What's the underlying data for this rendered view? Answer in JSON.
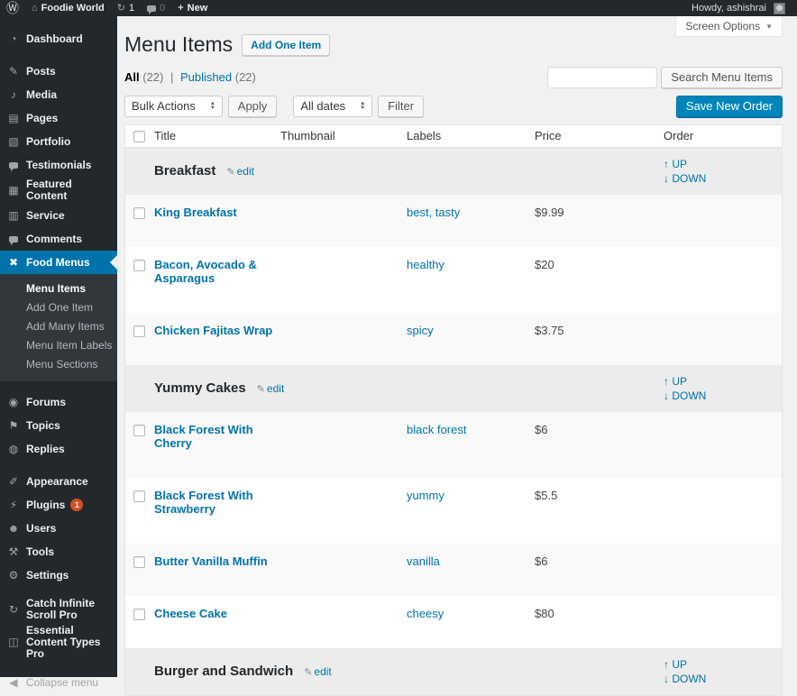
{
  "admin_bar": {
    "wp_logo_glyph": "Ⓦ",
    "home_glyph": "⌂",
    "site_name": "Foodie World",
    "updates_glyph": "↻",
    "update_count": "1",
    "comment_count": "0",
    "plus_glyph": "+",
    "new_label": "New",
    "howdy": "Howdy, ashishrai",
    "avatar_glyph": "☻"
  },
  "sidebar": {
    "items": [
      {
        "label": "Dashboard",
        "icon": "dashboard-icon",
        "glyph": "◔"
      },
      {
        "label": "Posts",
        "icon": "posts-icon",
        "glyph": "✎",
        "gap_before": true
      },
      {
        "label": "Media",
        "icon": "media-icon",
        "glyph": "♪"
      },
      {
        "label": "Pages",
        "icon": "pages-icon",
        "glyph": "▤"
      },
      {
        "label": "Portfolio",
        "icon": "portfolio-icon",
        "glyph": "▧"
      },
      {
        "label": "Testimonials",
        "icon": "testimonials-icon",
        "shape": "bubble"
      },
      {
        "label": "Featured Content",
        "icon": "featured-content-icon",
        "glyph": "▦"
      },
      {
        "label": "Service",
        "icon": "service-icon",
        "glyph": "▥"
      },
      {
        "label": "Comments",
        "icon": "comments-icon",
        "shape": "bubble"
      },
      {
        "label": "Food Menus",
        "icon": "food-menus-icon",
        "glyph": "✖",
        "active": true,
        "submenu": [
          "Menu Items",
          "Add One Item",
          "Add Many Items",
          "Menu Item Labels",
          "Menu Sections"
        ],
        "submenu_active": "Menu Items"
      },
      {
        "label": "Forums",
        "icon": "forums-icon",
        "glyph": "◉",
        "gap_before": true
      },
      {
        "label": "Topics",
        "icon": "topics-icon",
        "glyph": "⚑"
      },
      {
        "label": "Replies",
        "icon": "replies-icon",
        "glyph": "◍"
      },
      {
        "label": "Appearance",
        "icon": "appearance-icon",
        "glyph": "✐",
        "gap_before": true
      },
      {
        "label": "Plugins",
        "icon": "plugins-icon",
        "glyph": "⚡",
        "badge": "1"
      },
      {
        "label": "Users",
        "icon": "users-icon",
        "glyph": "☻"
      },
      {
        "label": "Tools",
        "icon": "tools-icon",
        "glyph": "⚒"
      },
      {
        "label": "Settings",
        "icon": "settings-icon",
        "glyph": "⚙"
      },
      {
        "label": "Catch Infinite Scroll Pro",
        "icon": "catch-infinite-scroll-icon",
        "glyph": "↻",
        "gap_before": true
      },
      {
        "label": "Essential Content Types Pro",
        "icon": "essential-content-types-icon",
        "glyph": "◫"
      },
      {
        "label": "Collapse menu",
        "icon": "collapse-menu-icon",
        "glyph": "◀",
        "collapse": true,
        "gap_before": true
      }
    ]
  },
  "page": {
    "title": "Menu Items",
    "add_button": "Add One Item",
    "screen_options": "Screen Options",
    "screen_options_caret": "▼",
    "filters": {
      "all_label": "All",
      "all_count": "(22)",
      "separator": "|",
      "published_label": "Published",
      "published_count": "(22)"
    },
    "bulk_actions_label": "Bulk Actions",
    "apply_label": "Apply",
    "all_dates_label": "All dates",
    "filter_label": "Filter",
    "search_value": "",
    "search_button": "Search Menu Items",
    "save_order_button": "Save New Order"
  },
  "table": {
    "columns": [
      "Title",
      "Thumbnail",
      "Labels",
      "Price",
      "Order"
    ],
    "edit_label": "edit",
    "edit_glyph": "✎",
    "up_glyph": "↑",
    "up_label": "UP",
    "down_glyph": "↓",
    "down_label": "DOWN",
    "rows": [
      {
        "type": "section",
        "title": "Breakfast"
      },
      {
        "type": "item",
        "title": "King Breakfast",
        "labels": "best, tasty",
        "price": "$9.99"
      },
      {
        "type": "item",
        "title": "Bacon, Avocado & Asparagus",
        "labels": "healthy",
        "price": "$20"
      },
      {
        "type": "item",
        "title": "Chicken Fajitas Wrap",
        "labels": "spicy",
        "price": "$3.75"
      },
      {
        "type": "section",
        "title": "Yummy Cakes"
      },
      {
        "type": "item",
        "title": "Black Forest With Cherry",
        "labels": "black forest",
        "price": "$6"
      },
      {
        "type": "item",
        "title": "Black Forest With Strawberry",
        "labels": "yummy",
        "price": "$5.5"
      },
      {
        "type": "item",
        "title": "Butter Vanilla Muffin",
        "labels": "vanilla",
        "price": "$6"
      },
      {
        "type": "item",
        "title": "Cheese Cake",
        "labels": "cheesy",
        "price": "$80"
      },
      {
        "type": "section",
        "title": "Burger and Sandwich"
      }
    ]
  },
  "colors": {
    "accent": "#0073aa",
    "primary_button": "#0085ba",
    "admin_dark": "#23282d",
    "badge_red": "#d54e21"
  }
}
